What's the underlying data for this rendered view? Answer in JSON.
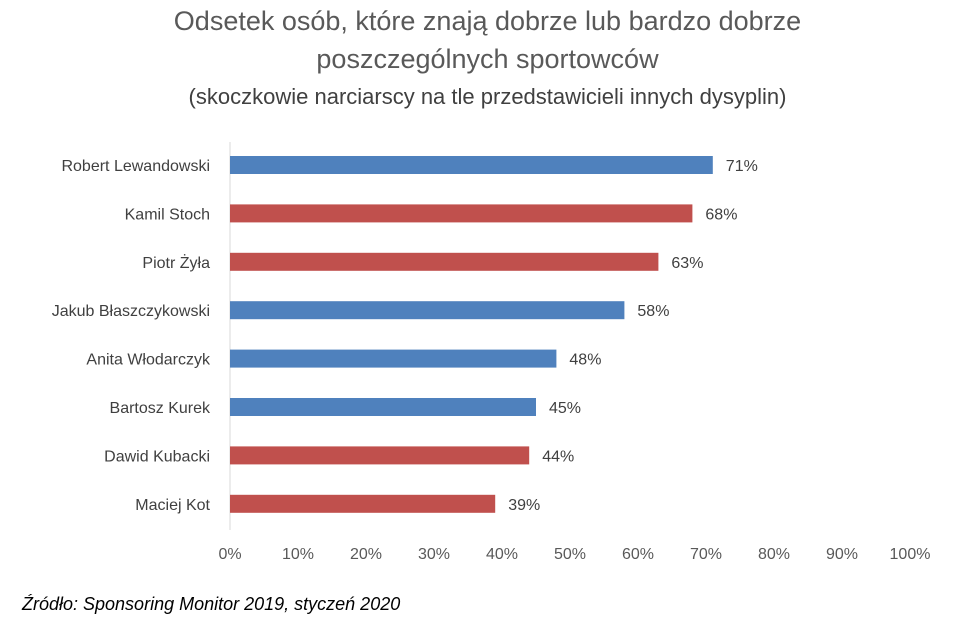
{
  "chart_data": {
    "type": "bar",
    "orientation": "horizontal",
    "title": "Odsetek osób, które znają dobrze lub bardzo dobrze",
    "title_line2": "poszczególnych sportowców",
    "subtitle": "(skoczkowie narciarscy na tle przedstawicieli innych dysyplin)",
    "categories": [
      "Robert Lewandowski",
      "Kamil Stoch",
      "Piotr Żyła",
      "Jakub Błaszczykowski",
      "Anita Włodarczyk",
      "Bartosz Kurek",
      "Dawid Kubacki",
      "Maciej Kot"
    ],
    "values": [
      71,
      68,
      63,
      58,
      48,
      45,
      44,
      39
    ],
    "data_labels": [
      "71%",
      "68%",
      "63%",
      "58%",
      "48%",
      "45%",
      "44%",
      "39%"
    ],
    "bar_colors": [
      "#4F81BD",
      "#C0504D",
      "#C0504D",
      "#4F81BD",
      "#4F81BD",
      "#4F81BD",
      "#C0504D",
      "#C0504D"
    ],
    "xlim": [
      0,
      100
    ],
    "x_ticks": [
      "0%",
      "10%",
      "20%",
      "30%",
      "40%",
      "50%",
      "60%",
      "70%",
      "80%",
      "90%",
      "100%"
    ],
    "grid": false,
    "colors": {
      "blue": "#4F81BD",
      "red": "#C0504D"
    }
  },
  "source": "Źródło: Sponsoring Monitor 2019, styczeń 2020"
}
